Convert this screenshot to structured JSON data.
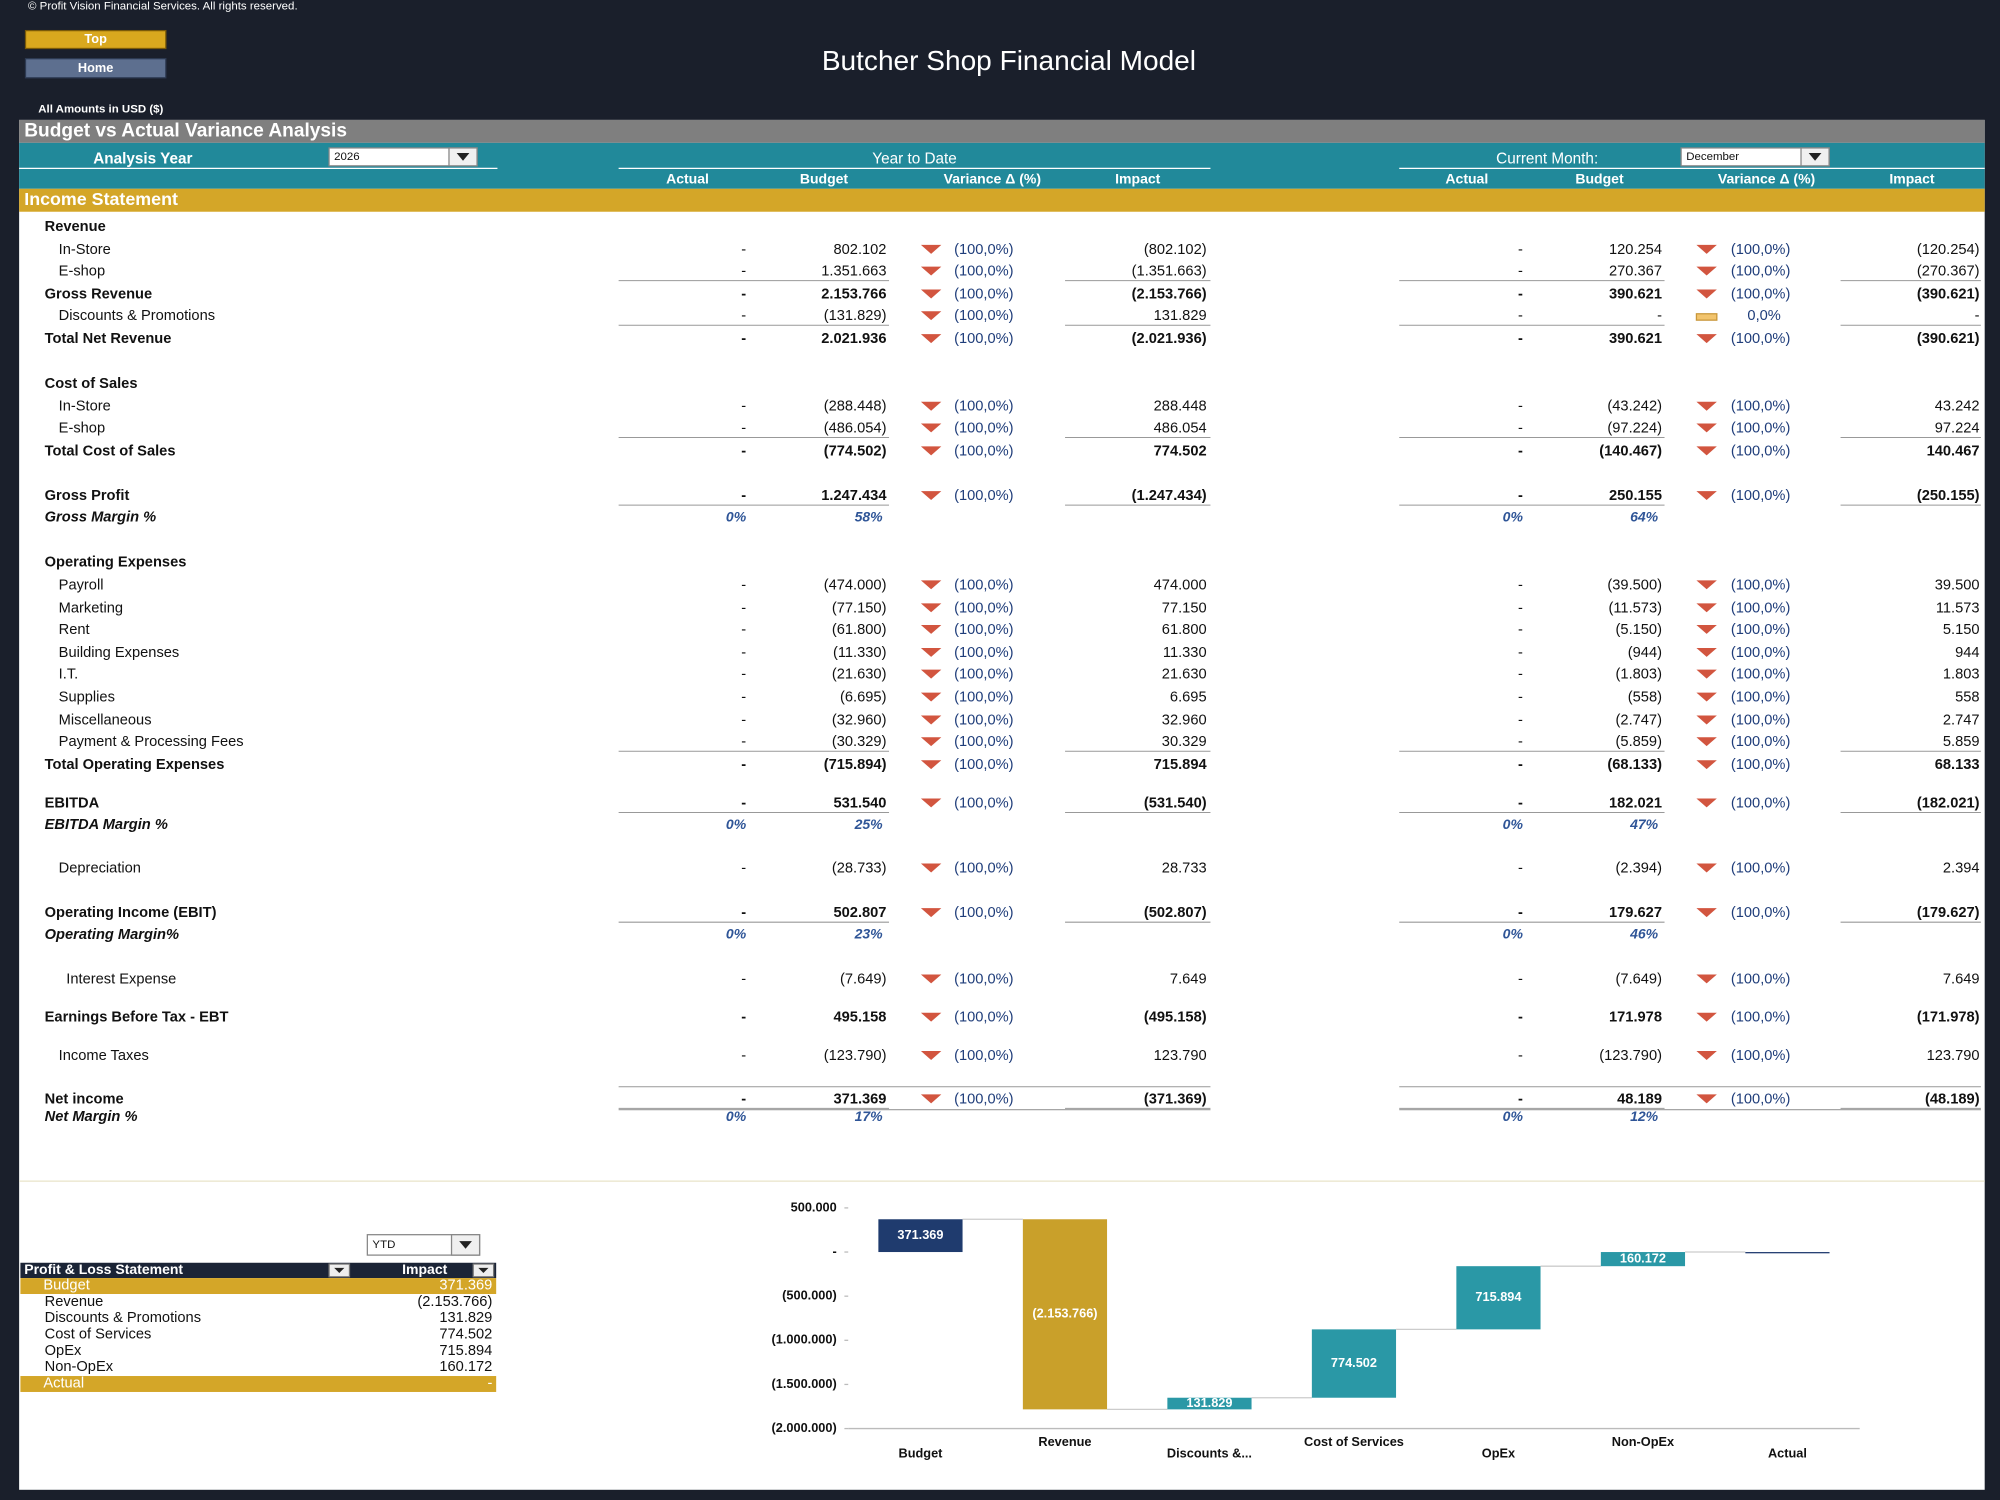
{
  "header": {
    "copyright": "© Profit Vision Financial Services. All rights reserved.",
    "buttons": [
      "Top",
      "Home"
    ],
    "title": "Butcher Shop Financial Model",
    "amounts_note": "All Amounts in  USD ($)"
  },
  "report": {
    "title": "Budget vs Actual Variance Analysis",
    "analysis_year_label": "Analysis Year",
    "analysis_year": "2026",
    "ytd_label": "Year to Date",
    "month_label": "Current Month:",
    "month": "December",
    "columns": [
      "Actual",
      "Budget",
      "Variance Δ  (%)",
      "Impact"
    ],
    "section": "Income Statement",
    "rows": [
      {
        "label": "Revenue",
        "style": "header"
      },
      {
        "label": "In-Store",
        "style": "item",
        "ytd": [
          "-",
          "802.102",
          "(100,0%)",
          "(802.102)"
        ],
        "month": [
          "-",
          "120.254",
          "(100,0%)",
          "(120.254)"
        ]
      },
      {
        "label": "E-shop",
        "style": "item",
        "ytd": [
          "-",
          "1.351.663",
          "(100,0%)",
          "(1.351.663)"
        ],
        "month": [
          "-",
          "270.367",
          "(100,0%)",
          "(270.367)"
        ]
      },
      {
        "label": "Gross Revenue",
        "style": "total",
        "ytd": [
          "-",
          "2.153.766",
          "(100,0%)",
          "(2.153.766)"
        ],
        "month": [
          "-",
          "390.621",
          "(100,0%)",
          "(390.621)"
        ]
      },
      {
        "label": "Discounts & Promotions",
        "style": "item",
        "ytd": [
          "-",
          "(131.829)",
          "(100,0%)",
          "131.829"
        ],
        "month": [
          "-",
          "-",
          "0,0%",
          "-"
        ]
      },
      {
        "label": "Total Net Revenue",
        "style": "total",
        "ytd": [
          "-",
          "2.021.936",
          "(100,0%)",
          "(2.021.936)"
        ],
        "month": [
          "-",
          "390.621",
          "(100,0%)",
          "(390.621)"
        ]
      },
      {
        "label": "Cost of Sales",
        "style": "header"
      },
      {
        "label": "In-Store",
        "style": "item",
        "ytd": [
          "-",
          "(288.448)",
          "(100,0%)",
          "288.448"
        ],
        "month": [
          "-",
          "(43.242)",
          "(100,0%)",
          "43.242"
        ]
      },
      {
        "label": "E-shop",
        "style": "item",
        "ytd": [
          "-",
          "(486.054)",
          "(100,0%)",
          "486.054"
        ],
        "month": [
          "-",
          "(97.224)",
          "(100,0%)",
          "97.224"
        ]
      },
      {
        "label": "Total Cost of Sales",
        "style": "total",
        "ytd": [
          "-",
          "(774.502)",
          "(100,0%)",
          "774.502"
        ],
        "month": [
          "-",
          "(140.467)",
          "(100,0%)",
          "140.467"
        ]
      },
      {
        "label": "Gross Profit",
        "style": "total",
        "ytd": [
          "-",
          "1.247.434",
          "(100,0%)",
          "(1.247.434)"
        ],
        "month": [
          "-",
          "250.155",
          "(100,0%)",
          "(250.155)"
        ]
      },
      {
        "label": "Gross Margin %",
        "style": "margin",
        "ytd": [
          "0%",
          "58%"
        ],
        "month": [
          "0%",
          "64%"
        ]
      },
      {
        "label": "Operating Expenses",
        "style": "header"
      },
      {
        "label": "Payroll",
        "style": "item",
        "ytd": [
          "-",
          "(474.000)",
          "(100,0%)",
          "474.000"
        ],
        "month": [
          "-",
          "(39.500)",
          "(100,0%)",
          "39.500"
        ]
      },
      {
        "label": "Marketing",
        "style": "item",
        "ytd": [
          "-",
          "(77.150)",
          "(100,0%)",
          "77.150"
        ],
        "month": [
          "-",
          "(11.573)",
          "(100,0%)",
          "11.573"
        ]
      },
      {
        "label": "Rent",
        "style": "item",
        "ytd": [
          "-",
          "(61.800)",
          "(100,0%)",
          "61.800"
        ],
        "month": [
          "-",
          "(5.150)",
          "(100,0%)",
          "5.150"
        ]
      },
      {
        "label": "Building Expenses",
        "style": "item",
        "ytd": [
          "-",
          "(11.330)",
          "(100,0%)",
          "11.330"
        ],
        "month": [
          "-",
          "(944)",
          "(100,0%)",
          "944"
        ]
      },
      {
        "label": "I.T.",
        "style": "item",
        "ytd": [
          "-",
          "(21.630)",
          "(100,0%)",
          "21.630"
        ],
        "month": [
          "-",
          "(1.803)",
          "(100,0%)",
          "1.803"
        ]
      },
      {
        "label": "Supplies",
        "style": "item",
        "ytd": [
          "-",
          "(6.695)",
          "(100,0%)",
          "6.695"
        ],
        "month": [
          "-",
          "(558)",
          "(100,0%)",
          "558"
        ]
      },
      {
        "label": "Miscellaneous",
        "style": "item",
        "ytd": [
          "-",
          "(32.960)",
          "(100,0%)",
          "32.960"
        ],
        "month": [
          "-",
          "(2.747)",
          "(100,0%)",
          "2.747"
        ]
      },
      {
        "label": "Payment & Processing Fees",
        "style": "item",
        "ytd": [
          "-",
          "(30.329)",
          "(100,0%)",
          "30.329"
        ],
        "month": [
          "-",
          "(5.859)",
          "(100,0%)",
          "5.859"
        ]
      },
      {
        "label": "Total Operating Expenses",
        "style": "total",
        "ytd": [
          "-",
          "(715.894)",
          "(100,0%)",
          "715.894"
        ],
        "month": [
          "-",
          "(68.133)",
          "(100,0%)",
          "68.133"
        ]
      },
      {
        "label": "EBITDA",
        "style": "total",
        "ytd": [
          "-",
          "531.540",
          "(100,0%)",
          "(531.540)"
        ],
        "month": [
          "-",
          "182.021",
          "(100,0%)",
          "(182.021)"
        ]
      },
      {
        "label": "EBITDA Margin %",
        "style": "margin",
        "ytd": [
          "0%",
          "25%"
        ],
        "month": [
          "0%",
          "47%"
        ]
      },
      {
        "label": "Depreciation",
        "style": "item",
        "ytd": [
          "-",
          "(28.733)",
          "(100,0%)",
          "28.733"
        ],
        "month": [
          "-",
          "(2.394)",
          "(100,0%)",
          "2.394"
        ]
      },
      {
        "label": "Operating Income (EBIT)",
        "style": "total",
        "ytd": [
          "-",
          "502.807",
          "(100,0%)",
          "(502.807)"
        ],
        "month": [
          "-",
          "179.627",
          "(100,0%)",
          "(179.627)"
        ]
      },
      {
        "label": "Operating Margin%",
        "style": "margin",
        "ytd": [
          "0%",
          "23%"
        ],
        "month": [
          "0%",
          "46%"
        ]
      },
      {
        "label": "Interest Expense",
        "style": "item",
        "ytd": [
          "-",
          "(7.649)",
          "(100,0%)",
          "7.649"
        ],
        "month": [
          "-",
          "(7.649)",
          "(100,0%)",
          "7.649"
        ]
      },
      {
        "label": "Earnings Before Tax - EBT",
        "style": "total",
        "ytd": [
          "-",
          "495.158",
          "(100,0%)",
          "(495.158)"
        ],
        "month": [
          "-",
          "171.978",
          "(100,0%)",
          "(171.978)"
        ]
      },
      {
        "label": "Income Taxes",
        "style": "item",
        "ytd": [
          "-",
          "(123.790)",
          "(100,0%)",
          "123.790"
        ],
        "month": [
          "-",
          "(123.790)",
          "(100,0%)",
          "123.790"
        ]
      },
      {
        "label": "Net income",
        "style": "total",
        "ytd": [
          "-",
          "371.369",
          "(100,0%)",
          "(371.369)"
        ],
        "month": [
          "-",
          "48.189",
          "(100,0%)",
          "(48.189)"
        ]
      },
      {
        "label": "Net Margin %",
        "style": "margin",
        "ytd": [
          "0%",
          "17%"
        ],
        "month": [
          "0%",
          "12%"
        ]
      }
    ]
  },
  "summary_table": {
    "filter": "YTD",
    "headers": [
      "Profit & Loss Statement",
      "Impact"
    ],
    "rows": [
      [
        "Budget",
        "371.369"
      ],
      [
        "Revenue",
        "(2.153.766)"
      ],
      [
        "Discounts & Promotions",
        "131.829"
      ],
      [
        "Cost of Services",
        "774.502"
      ],
      [
        "OpEx",
        "715.894"
      ],
      [
        "Non-OpEx",
        "160.172"
      ],
      [
        "Actual",
        "-"
      ]
    ]
  },
  "chart_data": {
    "type": "waterfall",
    "categories": [
      "Budget",
      "Revenue",
      "Discounts &...",
      "Cost of Services",
      "OpEx",
      "Non-OpEx",
      "Actual"
    ],
    "values": [
      371369,
      -2153766,
      131829,
      774502,
      715894,
      160172,
      0
    ],
    "value_labels": [
      "371.369",
      "(2.153.766)",
      "131.829",
      "774.502",
      "715.894",
      "160.172",
      null
    ],
    "colors": [
      "#1f3b6e",
      "#c9a02a",
      "#2a98a6",
      "#2a98a6",
      "#2a98a6",
      "#2a98a6",
      "#1f3b6e"
    ],
    "ylim": [
      -2000000,
      500000
    ],
    "yticks": [
      {
        "value": 500000,
        "label": "500.000"
      },
      {
        "value": 0,
        "label": "-"
      },
      {
        "value": -500000,
        "label": "(500.000)"
      },
      {
        "value": -1000000,
        "label": "(1.000.000)"
      },
      {
        "value": -1500000,
        "label": "(1.500.000)"
      },
      {
        "value": -2000000,
        "label": "(2.000.000)"
      }
    ],
    "grid": false
  }
}
